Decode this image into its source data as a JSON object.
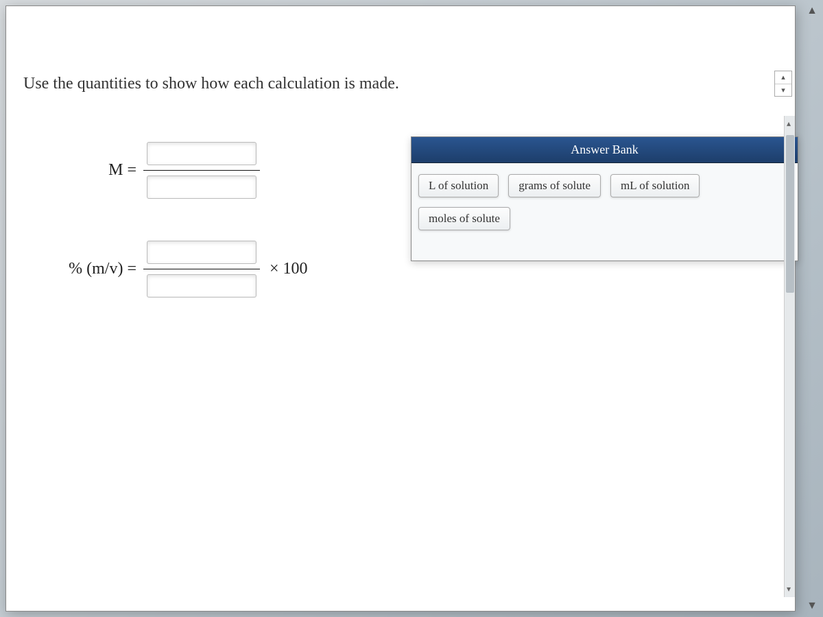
{
  "question": "Use the quantities to show how each calculation is made.",
  "equations": {
    "molarity_label": "M =",
    "percent_label": "% (m/v) =",
    "times_100": "× 100"
  },
  "answer_bank": {
    "title": "Answer Bank",
    "items": [
      "L of solution",
      "grams of solute",
      "mL of solution",
      "moles of solute"
    ]
  },
  "colors": {
    "bank_header_bg_top": "#2a5590",
    "bank_header_bg_bottom": "#1d3e6b",
    "page_bg": "#ffffff",
    "body_gradient_start": "#d8dcdf",
    "body_gradient_end": "#a8b4bd"
  },
  "glyphs": {
    "up": "▲",
    "down": "▼",
    "small_up": "▴",
    "small_down": "▾"
  }
}
